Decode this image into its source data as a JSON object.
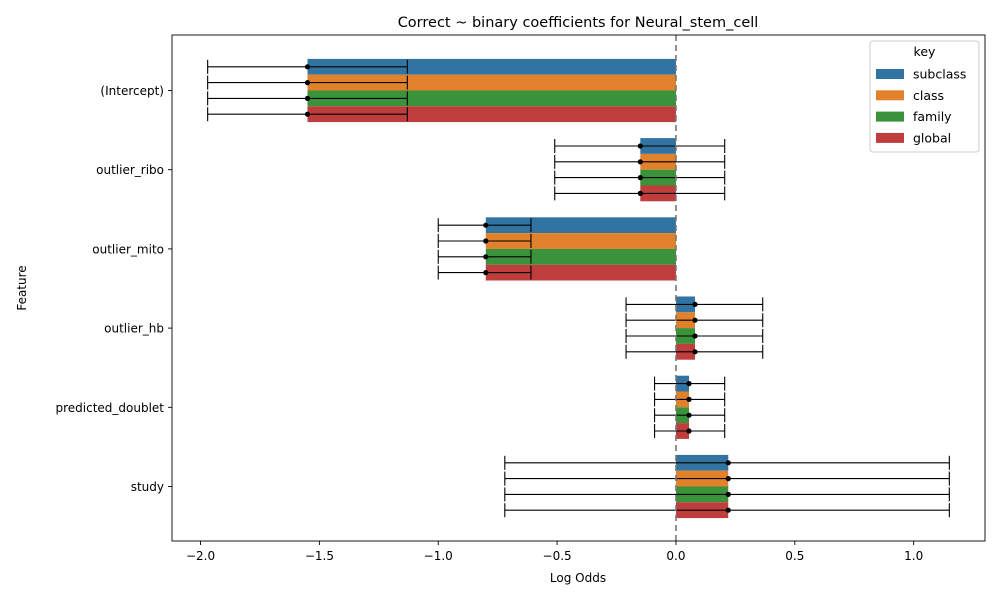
{
  "chart_data": {
    "type": "bar",
    "orientation": "horizontal",
    "title": "Correct ~ binary coefficients for Neural_stem_cell",
    "xlabel": "Log Odds",
    "ylabel": "Feature",
    "xlim": [
      -2.12,
      1.3
    ],
    "xticks": [
      -2.0,
      -1.5,
      -1.0,
      -0.5,
      0.0,
      0.5,
      1.0
    ],
    "xtick_labels": [
      "−2.0",
      "−1.5",
      "−1.0",
      "−0.5",
      "0.0",
      "0.5",
      "1.0"
    ],
    "categories": [
      "(Intercept)",
      "outlier_ribo",
      "outlier_mito",
      "outlier_hb",
      "predicted_doublet",
      "study"
    ],
    "reference_line": 0,
    "grid": false,
    "legend": {
      "title": "key",
      "position": "top-right"
    },
    "series": [
      {
        "name": "subclass",
        "color": "#3274a1",
        "values": [
          -1.55,
          -0.15,
          -0.8,
          0.08,
          0.055,
          0.22
        ],
        "ci_low": [
          -1.97,
          -0.51,
          -1.0,
          -0.21,
          -0.09,
          -0.72
        ],
        "ci_high": [
          -1.13,
          0.205,
          -0.61,
          0.365,
          0.205,
          1.15
        ]
      },
      {
        "name": "class",
        "color": "#e1812c",
        "values": [
          -1.55,
          -0.15,
          -0.8,
          0.08,
          0.055,
          0.22
        ],
        "ci_low": [
          -1.97,
          -0.51,
          -1.0,
          -0.21,
          -0.09,
          -0.72
        ],
        "ci_high": [
          -1.13,
          0.205,
          -0.61,
          0.365,
          0.205,
          1.15
        ]
      },
      {
        "name": "family",
        "color": "#3a923a",
        "values": [
          -1.55,
          -0.15,
          -0.8,
          0.08,
          0.055,
          0.22
        ],
        "ci_low": [
          -1.97,
          -0.51,
          -1.0,
          -0.21,
          -0.09,
          -0.72
        ],
        "ci_high": [
          -1.13,
          0.205,
          -0.61,
          0.365,
          0.205,
          1.15
        ]
      },
      {
        "name": "global",
        "color": "#c03d3e",
        "values": [
          -1.55,
          -0.15,
          -0.8,
          0.08,
          0.055,
          0.22
        ],
        "ci_low": [
          -1.97,
          -0.51,
          -1.0,
          -0.21,
          -0.09,
          -0.72
        ],
        "ci_high": [
          -1.13,
          0.205,
          -0.61,
          0.365,
          0.205,
          1.15
        ]
      }
    ]
  }
}
